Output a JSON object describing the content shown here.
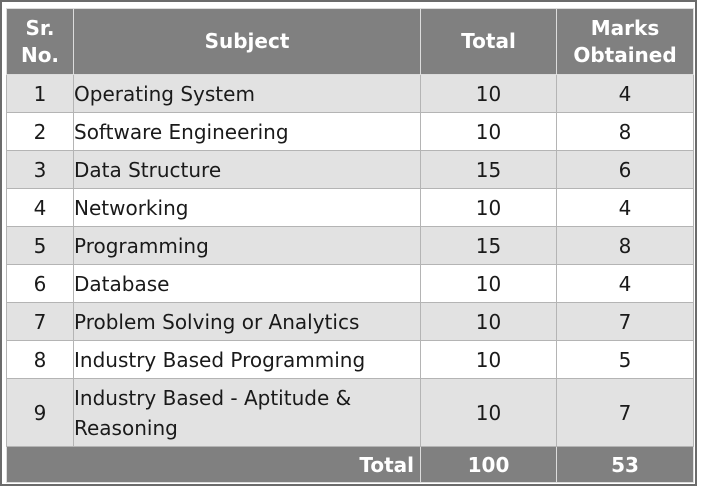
{
  "headers": {
    "sr_no": "Sr. No.",
    "subject": "Subject",
    "total": "Total",
    "marks_obtained": "Marks Obtained"
  },
  "rows": [
    {
      "sr": "1",
      "subject": "Operating System",
      "total": "10",
      "marks": "4"
    },
    {
      "sr": "2",
      "subject": "Software Engineering",
      "total": "10",
      "marks": "8"
    },
    {
      "sr": "3",
      "subject": "Data Structure",
      "total": "15",
      "marks": "6"
    },
    {
      "sr": "4",
      "subject": "Networking",
      "total": "10",
      "marks": "4"
    },
    {
      "sr": "5",
      "subject": "Programming",
      "total": "15",
      "marks": "8"
    },
    {
      "sr": "6",
      "subject": "Database",
      "total": "10",
      "marks": "4"
    },
    {
      "sr": "7",
      "subject": "Problem Solving or Analytics",
      "total": "10",
      "marks": "7"
    },
    {
      "sr": "8",
      "subject": "Industry Based Programming",
      "total": "10",
      "marks": "5"
    },
    {
      "sr": "9",
      "subject": "Industry Based - Aptitude & Reasoning",
      "total": "10",
      "marks": "7"
    }
  ],
  "footer": {
    "label": "Total",
    "total": "100",
    "marks": "53"
  },
  "colors": {
    "header_bg": "#808080",
    "stripe_bg": "#e2e2e2",
    "row_bg": "#ffffff"
  }
}
